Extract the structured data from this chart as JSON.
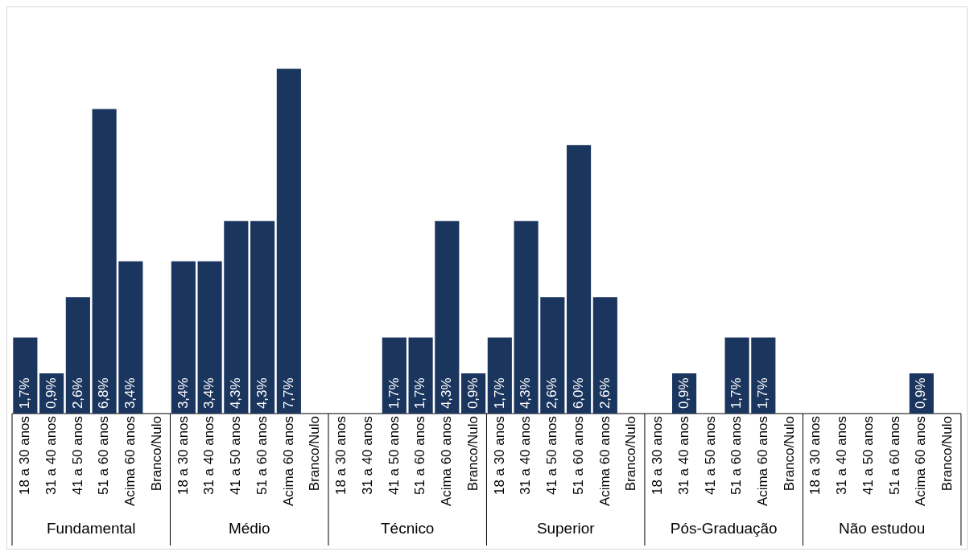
{
  "chart_data": {
    "type": "bar",
    "color": "#1a355e",
    "categories": [
      "18 a 30 anos",
      "31 a 40 anos",
      "41 a 50 anos",
      "51 a 60 anos",
      "Acima 60 anos",
      "Branco/Nulo",
      "18 a 30 anos",
      "31 a 40 anos",
      "41 a 50 anos",
      "51 a 60 anos",
      "Acima 60 anos",
      "Branco/Nulo",
      "18 a 30 anos",
      "31 a 40 anos",
      "41 a 50 anos",
      "51 a 60 anos",
      "Acima 60 anos",
      "Branco/Nulo",
      "18 a 30 anos",
      "31 a 40 anos",
      "41 a 50 anos",
      "51 a 60 anos",
      "Acima 60 anos",
      "Branco/Nulo",
      "18 a 30 anos",
      "31 a 40 anos",
      "41 a 50 anos",
      "51 a 60 anos",
      "Acima 60 anos",
      "Branco/Nulo",
      "18 a 30 anos",
      "31 a 40 anos",
      "41 a 50 anos",
      "51 a 60 anos",
      "Acima 60 anos",
      "Branco/Nulo"
    ],
    "values": [
      1.7,
      0.9,
      2.6,
      6.8,
      3.4,
      null,
      3.4,
      3.4,
      4.3,
      4.3,
      7.7,
      null,
      null,
      null,
      1.7,
      1.7,
      4.3,
      0.9,
      1.7,
      4.3,
      2.6,
      6.0,
      2.6,
      null,
      null,
      0.9,
      null,
      1.7,
      1.7,
      null,
      null,
      null,
      null,
      null,
      0.9,
      null
    ],
    "value_labels": [
      "1,7%",
      "0,9%",
      "2,6%",
      "6,8%",
      "3,4%",
      null,
      "3,4%",
      "3,4%",
      "4,3%",
      "4,3%",
      "7,7%",
      null,
      null,
      null,
      "1,7%",
      "1,7%",
      "4,3%",
      "0,9%",
      "1,7%",
      "4,3%",
      "2,6%",
      "6,0%",
      "2,6%",
      null,
      null,
      "0,9%",
      null,
      "1,7%",
      "1,7%",
      null,
      null,
      null,
      null,
      null,
      "0,9%",
      null
    ],
    "annotations": [
      "Fundamental",
      "Médio",
      "Técnico",
      "Superior",
      "Pós-Graduação",
      "Não estudou"
    ],
    "grid": false,
    "legend": false
  }
}
